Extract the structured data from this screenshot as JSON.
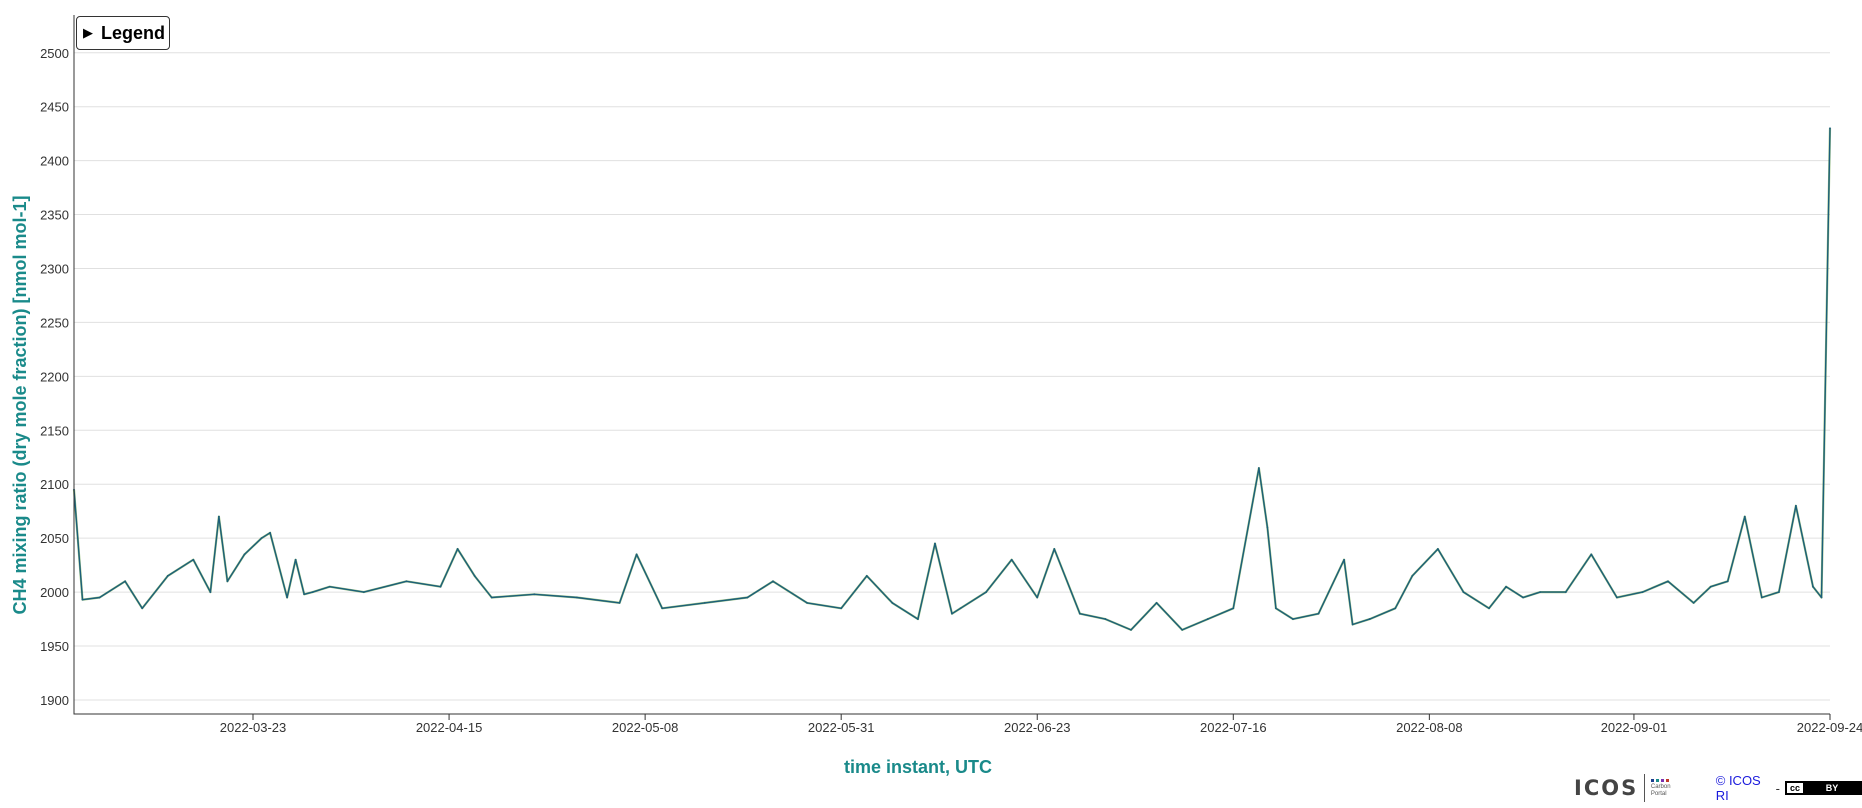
{
  "legend": {
    "label": "Legend"
  },
  "footer": {
    "logo": "ICOS",
    "logo_sub": "Carbon Portal",
    "credit": "© ICOS RI",
    "separator": "-",
    "license_left": "cc",
    "license_right": "BY"
  },
  "colors": {
    "axis_label": "#1a8a8a",
    "main_line": "#1c5f7a",
    "secondary_line": "#4a8f1a",
    "accent_line": "#7a2fb0",
    "grid": "#e0e0e0"
  },
  "chart_data": {
    "type": "line",
    "xlabel": "time instant, UTC",
    "ylabel": "CH4 mixing ratio (dry mole fraction) [nmol mol-1]",
    "ylim": [
      1887,
      2535
    ],
    "xlim": [
      "2022-03-02",
      "2022-09-24"
    ],
    "yticks": [
      1900,
      1950,
      2000,
      2050,
      2100,
      2150,
      2200,
      2250,
      2300,
      2350,
      2400,
      2450,
      2500
    ],
    "xticks": [
      "2022-03-23",
      "2022-04-15",
      "2022-05-08",
      "2022-05-31",
      "2022-06-23",
      "2022-07-16",
      "2022-08-08",
      "2022-09-01",
      "2022-09-24"
    ],
    "grid": true,
    "legend_position": "top-left (collapsed)",
    "series": [
      {
        "color": "#1c5f7a",
        "x": [
          "2022-03-02",
          "2022-03-03",
          "2022-03-05",
          "2022-03-08",
          "2022-03-10",
          "2022-03-13",
          "2022-03-16",
          "2022-03-18",
          "2022-03-19",
          "2022-03-20",
          "2022-03-22",
          "2022-03-24",
          "2022-03-25",
          "2022-03-27",
          "2022-03-28",
          "2022-03-29",
          "2022-03-30",
          "2022-04-01",
          "2022-04-05",
          "2022-04-10",
          "2022-04-14",
          "2022-04-16",
          "2022-04-18",
          "2022-04-20",
          "2022-04-25",
          "2022-04-30",
          "2022-05-05",
          "2022-05-07",
          "2022-05-10",
          "2022-05-15",
          "2022-05-20",
          "2022-05-23",
          "2022-05-27",
          "2022-05-31",
          "2022-06-03",
          "2022-06-06",
          "2022-06-09",
          "2022-06-11",
          "2022-06-13",
          "2022-06-14",
          "2022-06-17",
          "2022-06-20",
          "2022-06-23",
          "2022-06-25",
          "2022-06-28",
          "2022-07-01",
          "2022-07-04",
          "2022-07-07",
          "2022-07-10",
          "2022-07-13",
          "2022-07-16",
          "2022-07-19",
          "2022-07-20",
          "2022-07-21",
          "2022-07-23",
          "2022-07-26",
          "2022-07-29",
          "2022-07-30",
          "2022-08-01",
          "2022-08-04",
          "2022-08-06",
          "2022-08-09",
          "2022-08-12",
          "2022-08-15",
          "2022-08-17",
          "2022-08-19",
          "2022-08-21",
          "2022-08-24",
          "2022-08-27",
          "2022-08-30",
          "2022-09-02",
          "2022-09-05",
          "2022-09-08",
          "2022-09-10",
          "2022-09-12",
          "2022-09-14",
          "2022-09-16",
          "2022-09-18",
          "2022-09-20",
          "2022-09-22",
          "2022-09-23",
          "2022-09-24"
        ],
        "y": [
          2095,
          1993,
          1995,
          2010,
          1985,
          2015,
          2030,
          2000,
          2070,
          2010,
          2035,
          2050,
          2055,
          1995,
          2030,
          1998,
          2000,
          2005,
          2000,
          2010,
          2005,
          2040,
          2015,
          1995,
          1998,
          1995,
          1990,
          2035,
          1985,
          1990,
          1995,
          2010,
          1990,
          1985,
          2015,
          1990,
          1975,
          2045,
          1980,
          1985,
          2000,
          2030,
          1995,
          2040,
          1980,
          1975,
          1965,
          1990,
          1965,
          1975,
          1985,
          2115,
          2060,
          1985,
          1975,
          1980,
          2030,
          1970,
          1975,
          1985,
          2015,
          2040,
          2000,
          1985,
          2005,
          1995,
          2000,
          2000,
          2035,
          1995,
          2000,
          2010,
          1990,
          2005,
          2010,
          2070,
          1995,
          2000,
          2080,
          2005,
          1995,
          2430
        ]
      }
    ]
  }
}
